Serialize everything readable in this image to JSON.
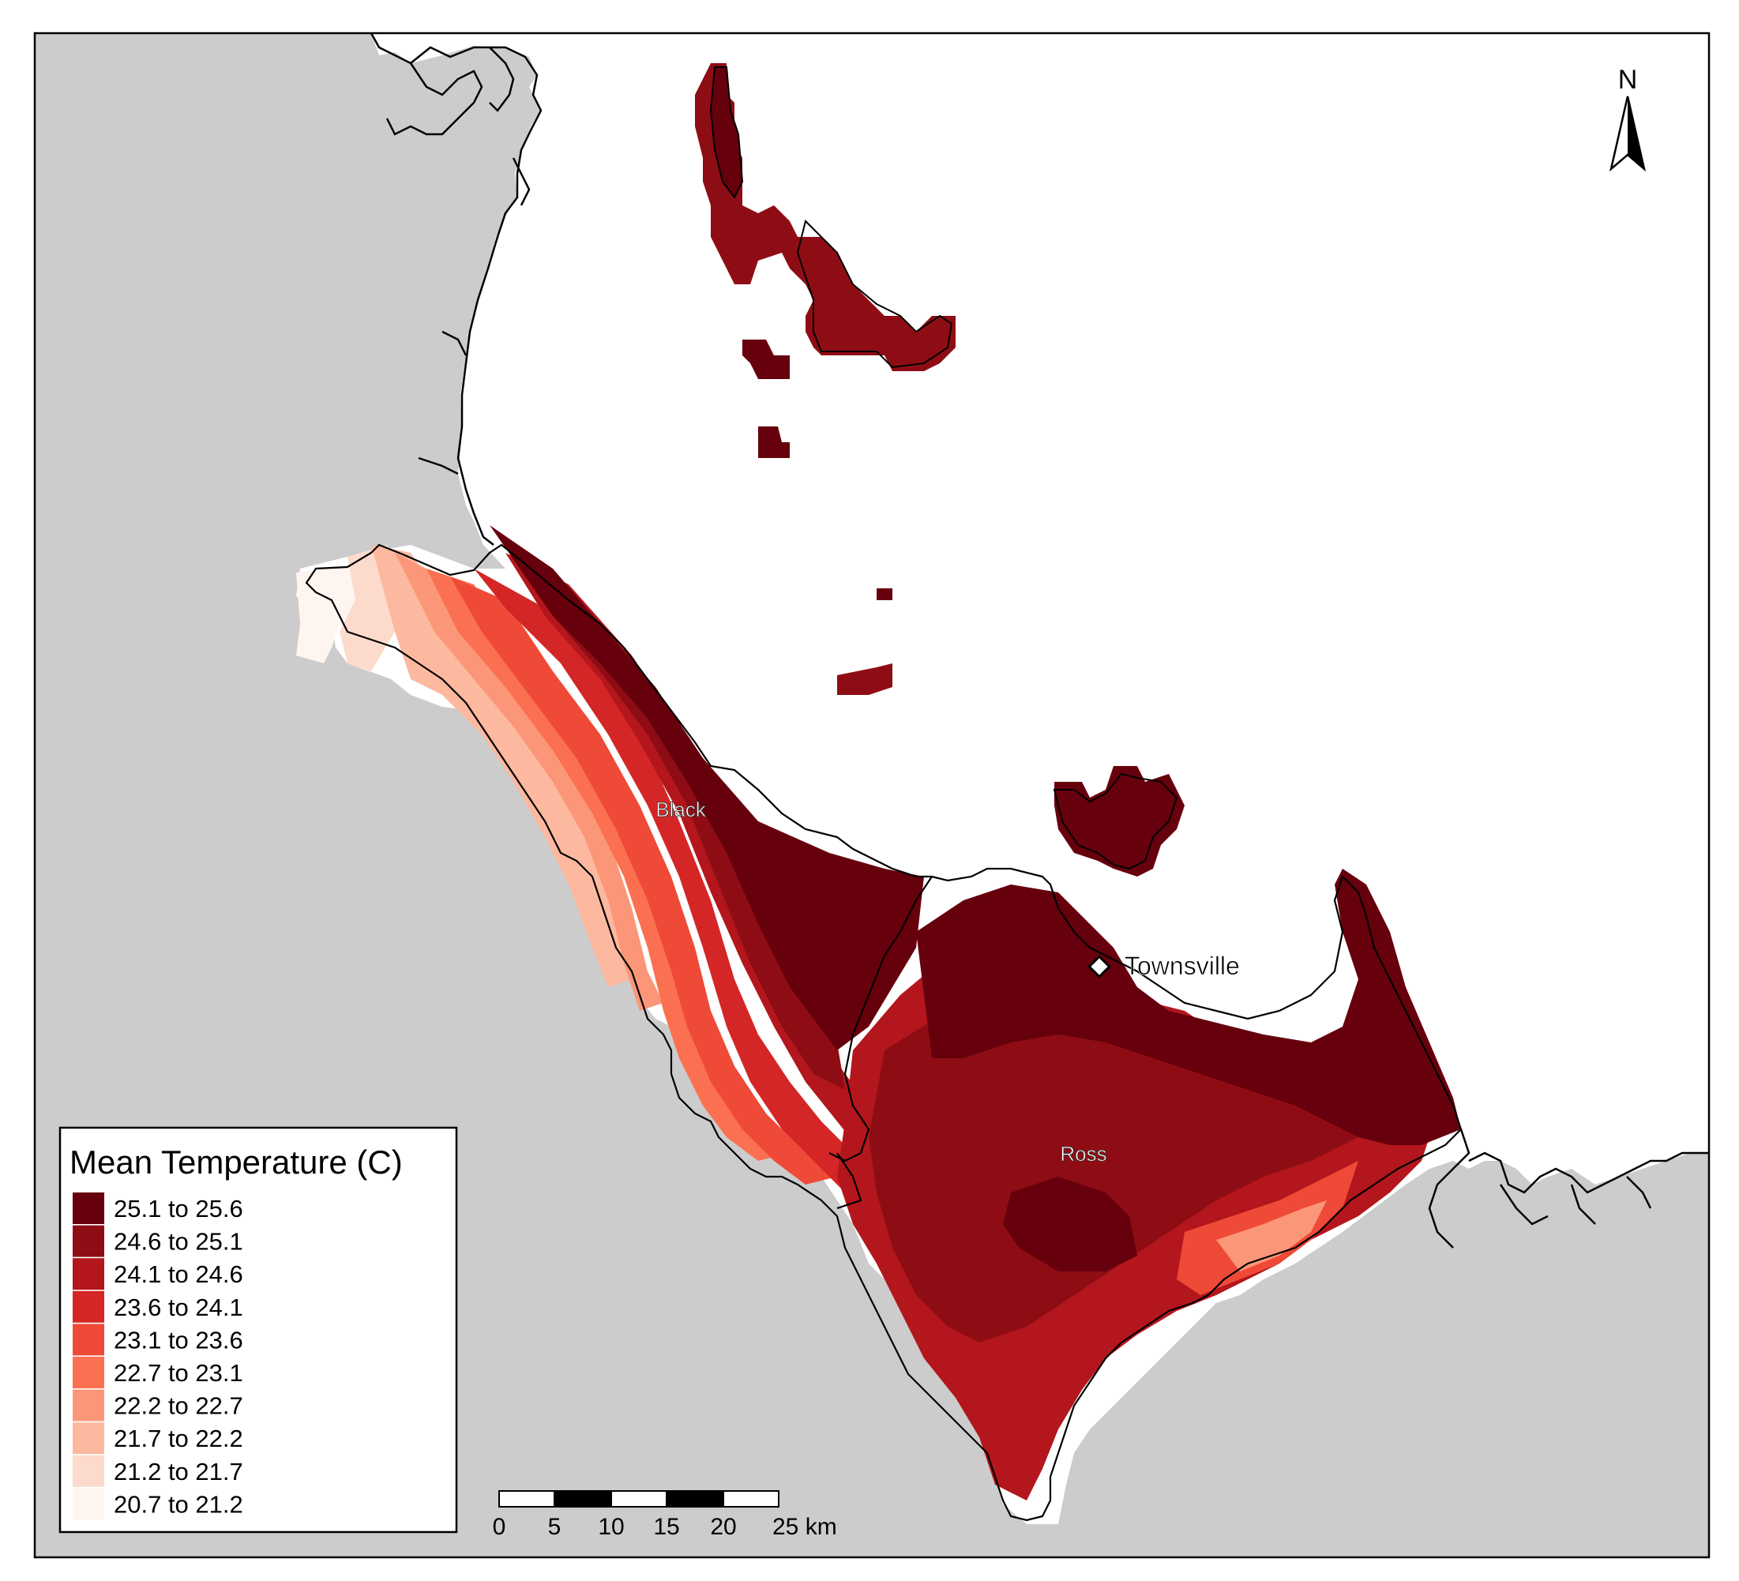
{
  "map": {
    "north_label": "N",
    "places": {
      "city": "Townsville",
      "catchment_black": "Black",
      "catchment_ross": "Ross"
    },
    "colors": {
      "land": "#cccccc",
      "sea": "#ffffff",
      "outline": "#000000"
    }
  },
  "legend": {
    "title": "Mean Temperature (C)",
    "classes": [
      {
        "label": "25.1 to 25.6",
        "color": "#67000d"
      },
      {
        "label": "24.6 to 25.1",
        "color": "#8e0d14"
      },
      {
        "label": "24.1 to 24.6",
        "color": "#b3161c"
      },
      {
        "label": "23.6 to 24.1",
        "color": "#d42626"
      },
      {
        "label": "23.1 to 23.6",
        "color": "#ef4a37"
      },
      {
        "label": "22.7 to 23.1",
        "color": "#fb7050"
      },
      {
        "label": "22.2 to 22.7",
        "color": "#fc9678"
      },
      {
        "label": "21.7 to 22.2",
        "color": "#fcb9a0"
      },
      {
        "label": "21.2 to 21.7",
        "color": "#fddbcc"
      },
      {
        "label": "20.7 to 21.2",
        "color": "#fff5f0"
      }
    ]
  },
  "scale_bar": {
    "ticks": [
      "0",
      "5",
      "10",
      "15",
      "20",
      "25 km"
    ]
  }
}
